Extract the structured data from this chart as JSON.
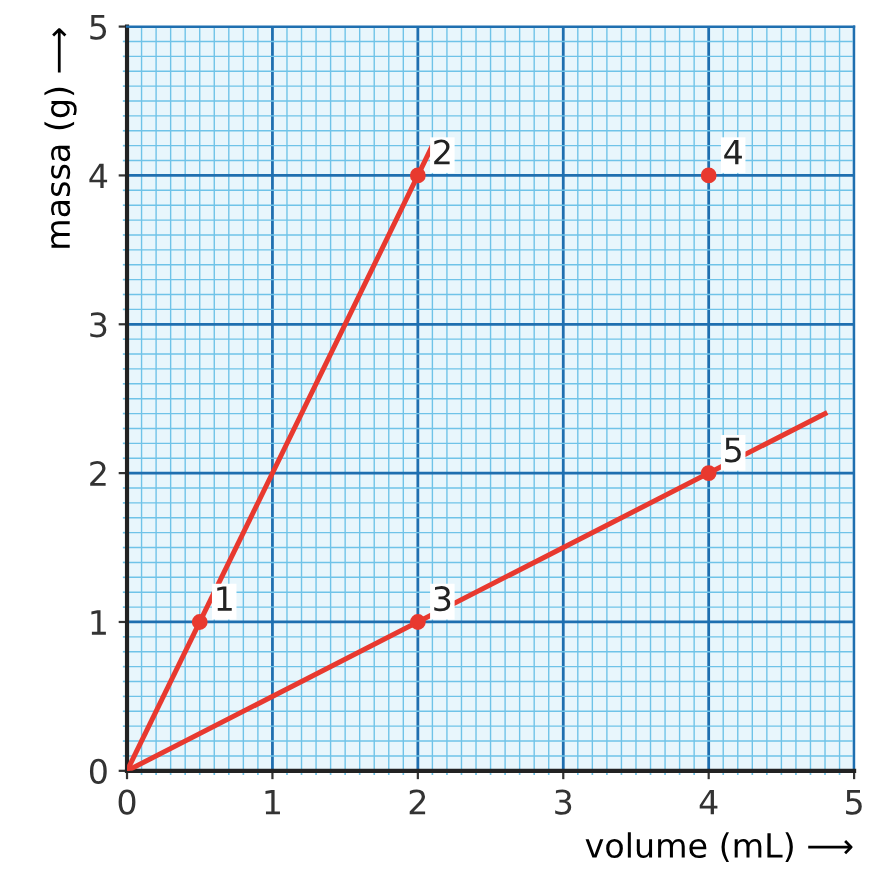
{
  "chart_data": {
    "type": "line",
    "xlabel": "volume (mL) ⟶",
    "ylabel": "massa (g) ⟶",
    "xlim": [
      0,
      5
    ],
    "ylim": [
      0,
      5
    ],
    "xticks": [
      0,
      {
        "value": 0.1,
        "label": null
      },
      {
        "value": 0.2,
        "label": null
      },
      {
        "value": 0.3,
        "label": null
      },
      {
        "value": 0.4,
        "label": null
      },
      {
        "value": 0.5,
        "label": null
      },
      {
        "value": 0.6,
        "label": null
      },
      {
        "value": 0.7,
        "label": null
      },
      {
        "value": 0.8,
        "label": null
      },
      {
        "value": 0.9,
        "label": null
      },
      1,
      {
        "value": 1.1,
        "label": null
      },
      {
        "value": 1.2,
        "label": null
      },
      {
        "value": 1.3,
        "label": null
      },
      {
        "value": 1.4,
        "label": null
      },
      {
        "value": 1.5,
        "label": null
      },
      {
        "value": 1.6,
        "label": null
      },
      {
        "value": 1.7,
        "label": null
      },
      {
        "value": 1.8,
        "label": null
      },
      {
        "value": 1.9,
        "label": null
      },
      2,
      {
        "value": 2.1,
        "label": null
      },
      {
        "value": 2.2,
        "label": null
      },
      {
        "value": 2.3,
        "label": null
      },
      {
        "value": 2.4,
        "label": null
      },
      {
        "value": 2.5,
        "label": null
      },
      {
        "value": 2.6,
        "label": null
      },
      {
        "value": 2.7,
        "label": null
      },
      {
        "value": 2.8,
        "label": null
      },
      {
        "value": 2.9,
        "label": null
      },
      3,
      {
        "value": 3.1,
        "label": null
      },
      {
        "value": 3.2,
        "label": null
      },
      {
        "value": 3.3,
        "label": null
      },
      {
        "value": 3.4,
        "label": null
      },
      {
        "value": 3.5,
        "label": null
      },
      {
        "value": 3.6,
        "label": null
      },
      {
        "value": 3.7,
        "label": null
      },
      {
        "value": 3.8,
        "label": null
      },
      {
        "value": 3.9,
        "label": null
      },
      4,
      {
        "value": 4.1,
        "label": null
      },
      {
        "value": 4.2,
        "label": null
      },
      {
        "value": 4.3,
        "label": null
      },
      {
        "value": 4.4,
        "label": null
      },
      {
        "value": 4.5,
        "label": null
      },
      {
        "value": 4.6,
        "label": null
      },
      {
        "value": 4.7,
        "label": null
      },
      {
        "value": 4.8,
        "label": null
      },
      {
        "value": 4.9,
        "label": null
      },
      5
    ],
    "yticks": [
      0,
      {
        "value": 0.1,
        "label": null
      },
      {
        "value": 0.2,
        "label": null
      },
      {
        "value": 0.3,
        "label": null
      },
      {
        "value": 0.4,
        "label": null
      },
      {
        "value": 0.5,
        "label": null
      },
      {
        "value": 0.6,
        "label": null
      },
      {
        "value": 0.7,
        "label": null
      },
      {
        "value": 0.8,
        "label": null
      },
      {
        "value": 0.9,
        "label": null
      },
      1,
      {
        "value": 1.1,
        "label": null
      },
      {
        "value": 1.2,
        "label": null
      },
      {
        "value": 1.3,
        "label": null
      },
      {
        "value": 1.4,
        "label": null
      },
      {
        "value": 1.5,
        "label": null
      },
      {
        "value": 1.6,
        "label": null
      },
      {
        "value": 1.7,
        "label": null
      },
      {
        "value": 1.8,
        "label": null
      },
      {
        "value": 1.9,
        "label": null
      },
      2,
      {
        "value": 2.1,
        "label": null
      },
      {
        "value": 2.2,
        "label": null
      },
      {
        "value": 2.3,
        "label": null
      },
      {
        "value": 2.4,
        "label": null
      },
      {
        "value": 2.5,
        "label": null
      },
      {
        "value": 2.6,
        "label": null
      },
      {
        "value": 2.7,
        "label": null
      },
      {
        "value": 2.8,
        "label": null
      },
      {
        "value": 2.9,
        "label": null
      },
      3,
      {
        "value": 3.1,
        "label": null
      },
      {
        "value": 3.2,
        "label": null
      },
      {
        "value": 3.3,
        "label": null
      },
      {
        "value": 3.4,
        "label": null
      },
      {
        "value": 3.5,
        "label": null
      },
      {
        "value": 3.6,
        "label": null
      },
      {
        "value": 3.7,
        "label": null
      },
      {
        "value": 3.8,
        "label": null
      },
      {
        "value": 3.9,
        "label": null
      },
      4,
      {
        "value": 4.1,
        "label": null
      },
      {
        "value": 4.2,
        "label": null
      },
      {
        "value": 4.3,
        "label": null
      },
      {
        "value": 4.4,
        "label": null
      },
      {
        "value": 4.5,
        "label": null
      },
      {
        "value": 4.6,
        "label": null
      },
      {
        "value": 4.7,
        "label": null
      },
      {
        "value": 4.8,
        "label": null
      },
      {
        "value": 4.9,
        "label": null
      },
      5
    ],
    "grid": true,
    "series": [
      {
        "color": "#e8392f",
        "x": [
          0,
          2.1
        ],
        "values": [
          0,
          4.2
        ],
        "marker": "none"
      },
      {
        "color": "#e8392f",
        "x": [
          0,
          4.8
        ],
        "values": [
          0,
          2.4
        ],
        "marker": "none"
      },
      {
        "type": "scatter",
        "color": "#e8392f",
        "x": [
          0.5,
          2,
          2,
          4,
          4
        ],
        "values": [
          1,
          4,
          1,
          4,
          2
        ],
        "marker": "circle"
      }
    ],
    "annotations": [
      {
        "text": "1",
        "x": 0.5,
        "y": 1
      },
      {
        "text": "2",
        "x": 2,
        "y": 4
      },
      {
        "text": "3",
        "x": 2,
        "y": 1
      },
      {
        "text": "4",
        "x": 4,
        "y": 4
      },
      {
        "text": "5",
        "x": 4,
        "y": 2
      }
    ]
  }
}
